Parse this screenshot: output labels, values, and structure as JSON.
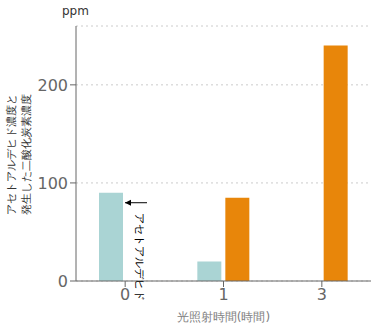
{
  "chart_data": {
    "type": "bar",
    "categories": [
      "0",
      "1",
      "3"
    ],
    "series": [
      {
        "name": "アセトアルデヒド",
        "color": "#aad4d4",
        "values": [
          90,
          20,
          0
        ]
      },
      {
        "name": "発生した二酸化炭素",
        "color": "#e8860a",
        "values": [
          0,
          85,
          240
        ]
      }
    ],
    "xlabel": "光照射時間(時間)",
    "ylabel": [
      "アセトアルデヒド濃度と",
      "発生した二酸化炭素濃度"
    ],
    "annotations": [
      "ppm"
    ],
    "ylim": [
      0,
      260
    ],
    "yticks": [
      0,
      100,
      200
    ],
    "grid": true
  }
}
